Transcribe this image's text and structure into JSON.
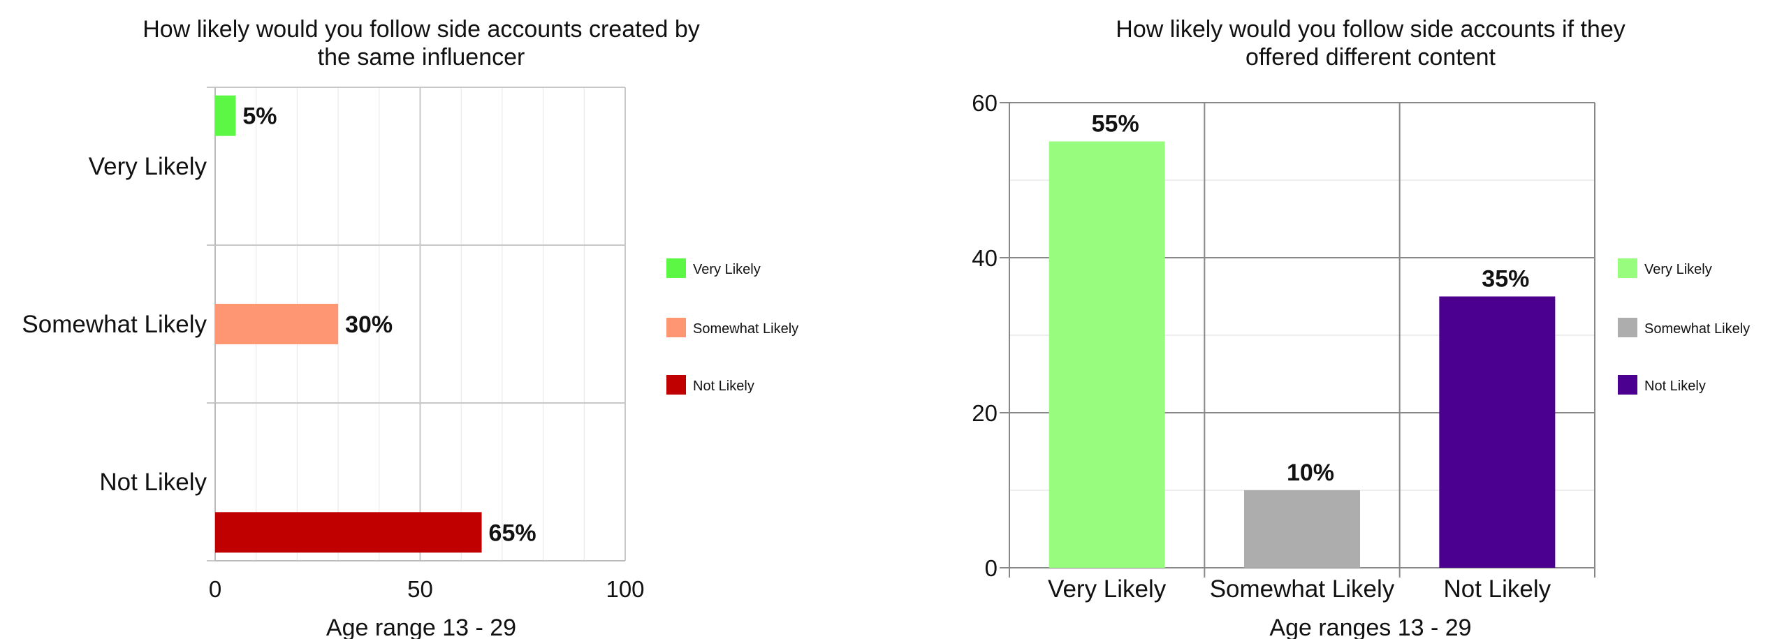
{
  "chart_data": [
    {
      "type": "bar",
      "orientation": "horizontal",
      "title": "How likely would you follow side accounts created by the same influencer",
      "title_lines": [
        "How likely would you follow side accounts created by",
        "the same influencer"
      ],
      "categories": [
        "Very Likely",
        "Somewhat Likely",
        "Not Likely"
      ],
      "values": [
        5,
        30,
        65
      ],
      "data_labels": [
        "5%",
        "30%",
        "65%"
      ],
      "colors": [
        "#5cf745",
        "#ff9673",
        "#c00000"
      ],
      "xlabel": "Age range 13 - 29",
      "ylabel": "",
      "xlim": [
        0,
        100
      ],
      "xticks": [
        0,
        50,
        100
      ],
      "grid": true,
      "legend": {
        "placement": "right",
        "entries": [
          {
            "label": "Very Likely",
            "color": "#5cf745"
          },
          {
            "label": "Somewhat Likely",
            "color": "#ff9673"
          },
          {
            "label": "Not Likely",
            "color": "#c00000"
          }
        ]
      }
    },
    {
      "type": "bar",
      "orientation": "vertical",
      "title": "How likely would you follow side accounts if they offered different content",
      "title_lines": [
        "How likely would you follow side accounts if they",
        "offered different content"
      ],
      "categories": [
        "Very Likely",
        "Somewhat Likely",
        "Not Likely"
      ],
      "values": [
        55,
        10,
        35
      ],
      "data_labels": [
        "55%",
        "10%",
        "35%"
      ],
      "colors": [
        "#98fc7f",
        "#adadad",
        "#4b0090"
      ],
      "xlabel": "Age ranges 13 - 29",
      "ylabel": "",
      "ylim": [
        0,
        60
      ],
      "yticks": [
        0,
        20,
        40,
        60
      ],
      "grid": true,
      "legend": {
        "placement": "right",
        "entries": [
          {
            "label": "Very Likely",
            "color": "#98fc7f"
          },
          {
            "label": "Somewhat Likely",
            "color": "#adadad"
          },
          {
            "label": "Not Likely",
            "color": "#4b0090"
          }
        ]
      }
    }
  ]
}
